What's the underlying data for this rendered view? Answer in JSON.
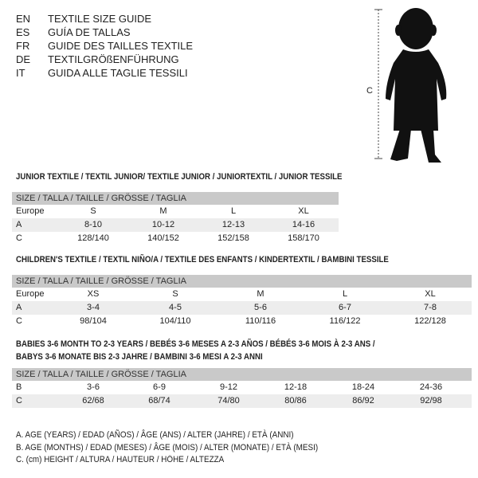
{
  "titles": [
    {
      "code": "EN",
      "text": "TEXTILE SIZE GUIDE"
    },
    {
      "code": "ES",
      "text": "GUÍA DE TALLAS"
    },
    {
      "code": "FR",
      "text": "GUIDE DES TAILLES TEXTILE"
    },
    {
      "code": "DE",
      "text": "TEXTILGRÖßENFÜHRUNG"
    },
    {
      "code": "IT",
      "text": "GUIDA ALLE TAGLIE TESSILI"
    }
  ],
  "figure": {
    "label": "C"
  },
  "size_header": "SIZE / TALLA / TAILLE / GRÖSSE / TAGLIA",
  "junior": {
    "heading": "JUNIOR TEXTILE / TEXTIL JUNIOR/ TEXTILE JUNIOR / JUNIORTEXTIL / JUNIOR TESSILE",
    "rows": [
      {
        "label": "Europe",
        "values": [
          "S",
          "M",
          "L",
          "XL"
        ]
      },
      {
        "label": "A",
        "values": [
          "8-10",
          "10-12",
          "12-13",
          "14-16"
        ]
      },
      {
        "label": "C",
        "values": [
          "128/140",
          "140/152",
          "152/158",
          "158/170"
        ]
      }
    ]
  },
  "children": {
    "heading": "CHILDREN'S TEXTILE / TEXTIL NIÑO/A / TEXTILE DES ENFANTS / KINDERTEXTIL / BAMBINI TESSILE",
    "rows": [
      {
        "label": "Europe",
        "values": [
          "XS",
          "S",
          "M",
          "L",
          "XL"
        ]
      },
      {
        "label": "A",
        "values": [
          "3-4",
          "4-5",
          "5-6",
          "6-7",
          "7-8"
        ]
      },
      {
        "label": "C",
        "values": [
          "98/104",
          "104/110",
          "110/116",
          "116/122",
          "122/128"
        ]
      }
    ]
  },
  "babies": {
    "heading_1": "BABIES 3-6 MONTH TO 2-3 YEARS / BEBÉS 3-6 MESES A 2-3 AÑOS / BÉBÉS 3-6 MOIS À 2-3 ANS /",
    "heading_2": "BABYS 3-6 MONATE BIS 2-3 JAHRE / BAMBINI 3-6 MESI A 2-3 ANNI",
    "rows": [
      {
        "label": "B",
        "values": [
          "3-6",
          "6-9",
          "9-12",
          "12-18",
          "18-24",
          "24-36"
        ]
      },
      {
        "label": "C",
        "values": [
          "62/68",
          "68/74",
          "74/80",
          "80/86",
          "86/92",
          "92/98"
        ]
      }
    ]
  },
  "legend": [
    "A. AGE (YEARS) / EDAD (AÑOS) / ÂGE (ANS) / ALTER (JAHRE) / ETÀ (ANNI)",
    "B. AGE (MONTHS) / EDAD (MESES) / ÂGE (MOIS) / ALTER (MONATE) / ETÀ (MESI)",
    "C. (cm) HEIGHT / ALTURA / HAUTEUR / HÖHE / ALTEZZA"
  ]
}
